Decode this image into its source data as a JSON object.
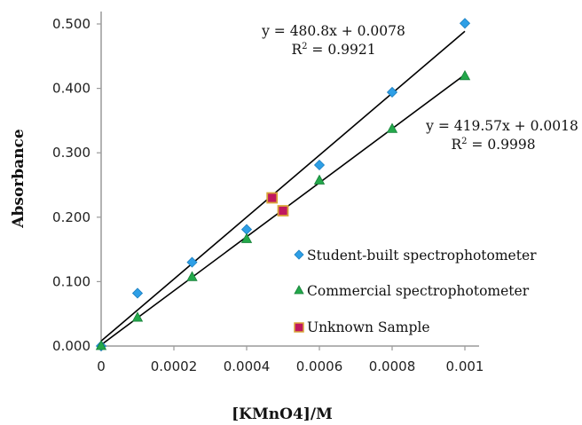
{
  "chart_data": {
    "type": "scatter",
    "title": "",
    "xlabel": "[KMnO4]/M",
    "ylabel": "Absorbance",
    "xlim": [
      0,
      0.001
    ],
    "ylim": [
      0,
      0.5
    ],
    "x_ticks": [
      "0",
      "0.0002",
      "0.0004",
      "0.0006",
      "0.0008",
      "0.001"
    ],
    "y_ticks": [
      "0.000",
      "0.100",
      "0.200",
      "0.300",
      "0.400",
      "0.500"
    ],
    "grid": false,
    "legend_position": "right",
    "series": [
      {
        "name": "Student-built spectrophotometer",
        "marker": "diamond",
        "color": "#2e9fe6",
        "points": [
          [
            0,
            0.0
          ],
          [
            0.0001,
            0.082
          ],
          [
            0.00025,
            0.13
          ],
          [
            0.0004,
            0.181
          ],
          [
            0.0006,
            0.281
          ],
          [
            0.0008,
            0.394
          ],
          [
            0.001,
            0.501
          ]
        ],
        "trendline": {
          "slope": 480.8,
          "intercept": 0.0078
        }
      },
      {
        "name": "Commercial spectrophotometer",
        "marker": "triangle",
        "color": "#23a84a",
        "points": [
          [
            0,
            0.0
          ],
          [
            0.0001,
            0.044
          ],
          [
            0.00025,
            0.107
          ],
          [
            0.0004,
            0.166
          ],
          [
            0.0006,
            0.257
          ],
          [
            0.0008,
            0.337
          ],
          [
            0.001,
            0.419
          ]
        ],
        "trendline": {
          "slope": 419.57,
          "intercept": 0.0018
        }
      },
      {
        "name": "Unknown Sample",
        "marker": "square",
        "color": "#c0185f",
        "edge_color": "#d9a53a",
        "points": [
          [
            0.00047,
            0.23
          ],
          [
            0.0005,
            0.21
          ]
        ]
      }
    ],
    "annotations": [
      {
        "line1": "y = 480.8x + 0.0078",
        "r2_prefix": "R",
        "r2_exp": "2",
        "r2_value": " = 0.9921"
      },
      {
        "line1": "y = 419.57x + 0.0018",
        "r2_prefix": "R",
        "r2_exp": "2",
        "r2_value": " = 0.9998"
      }
    ]
  }
}
